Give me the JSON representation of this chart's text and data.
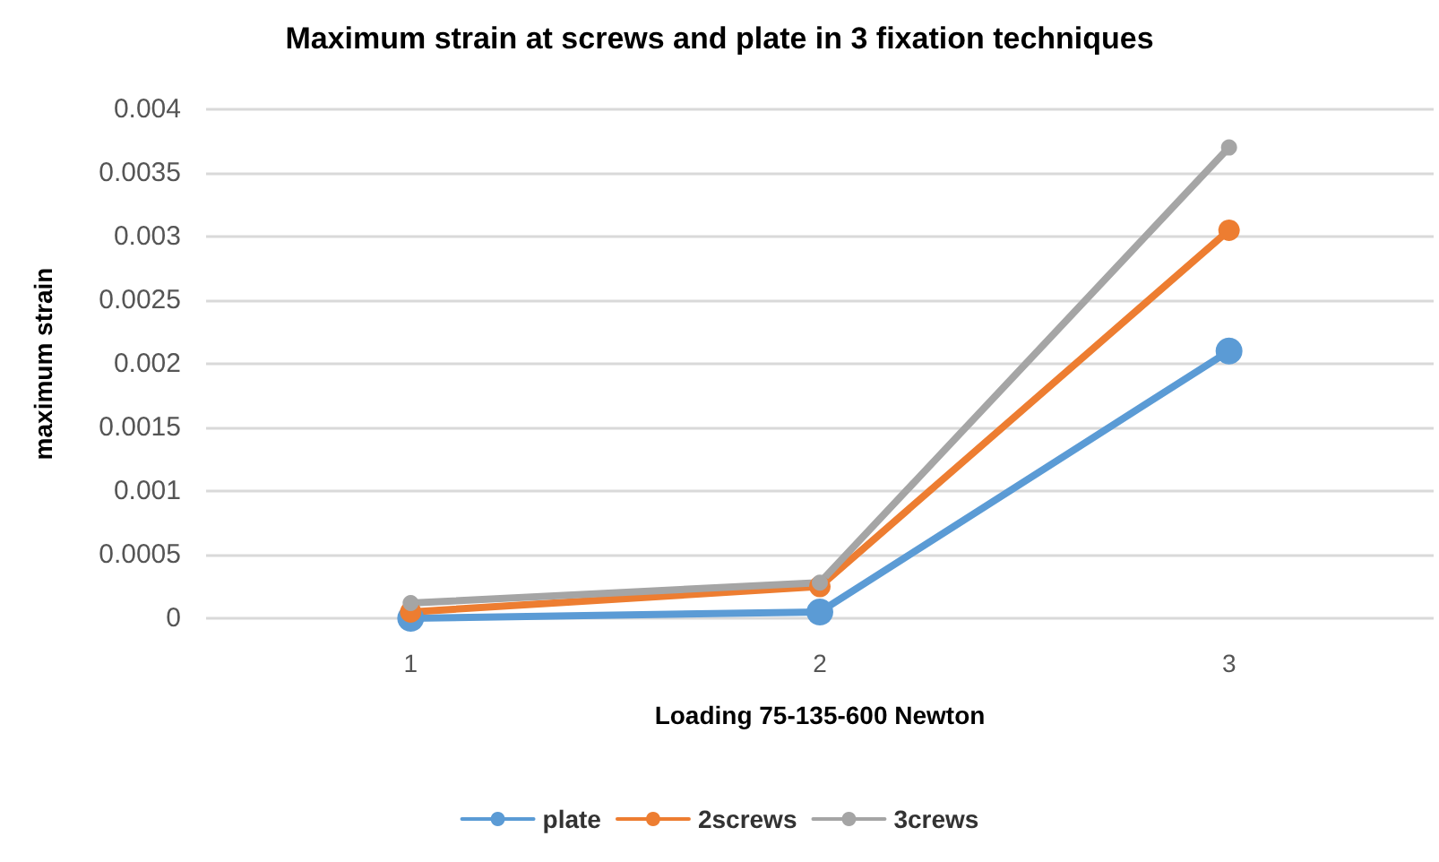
{
  "chart_data": {
    "type": "line",
    "title": "Maximum strain at screws and plate in 3 fixation techniques",
    "xlabel": "Loading 75-135-600 Newton",
    "ylabel": "maximum strain",
    "categories": [
      "1",
      "2",
      "3"
    ],
    "series": [
      {
        "name": "plate",
        "color": "#5b9bd5",
        "values": [
          0,
          5e-05,
          0.0021
        ]
      },
      {
        "name": "2screws",
        "color": "#ed7d31",
        "values": [
          5e-05,
          0.00025,
          0.00305
        ]
      },
      {
        "name": "3crews",
        "color": "#a5a5a5",
        "values": [
          0.00012,
          0.00028,
          0.0037
        ]
      }
    ],
    "ylim": [
      0,
      0.004
    ],
    "yticks": [
      0,
      0.0005,
      0.001,
      0.0015,
      0.002,
      0.0025,
      0.003,
      0.0035,
      0.004
    ],
    "grid": "y",
    "legend": "bottom",
    "marker": "circle",
    "line_style": "solid"
  }
}
